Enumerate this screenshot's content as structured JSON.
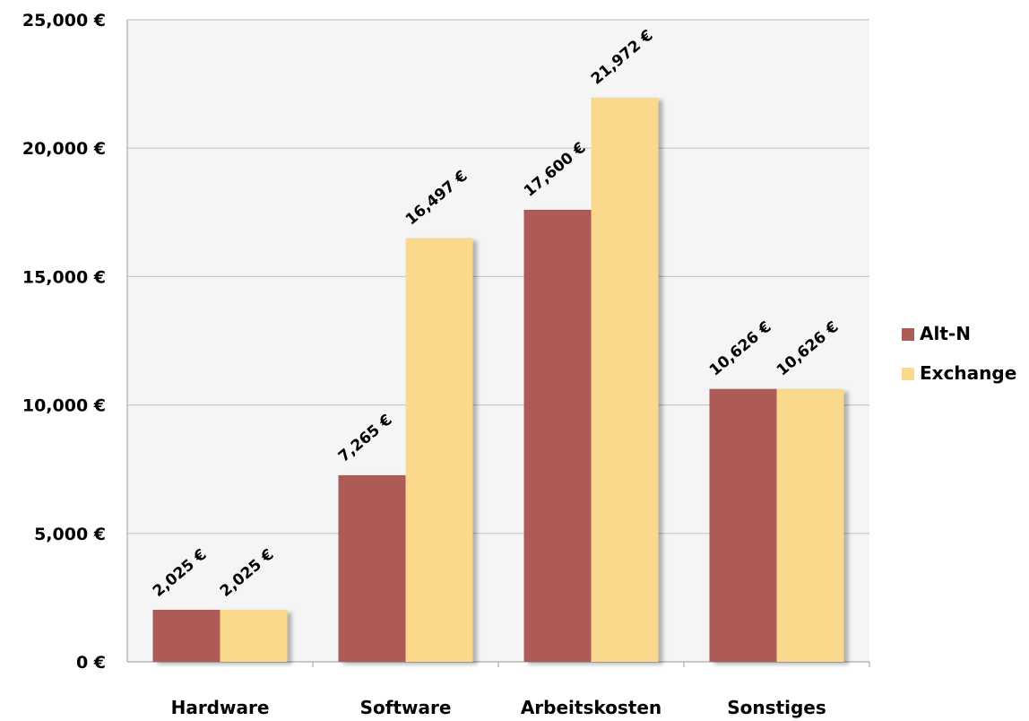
{
  "chart_data": {
    "type": "bar",
    "categories": [
      "Hardware",
      "Software",
      "Arbeitskosten",
      "Sonstiges"
    ],
    "series": [
      {
        "name": "Alt-N",
        "color": "#ae5a56",
        "values": [
          2025,
          7265,
          17600,
          10626
        ]
      },
      {
        "name": "Exchange",
        "color": "#fbd98c",
        "values": [
          2025,
          16497,
          21972,
          10626
        ]
      }
    ],
    "data_labels": [
      [
        "2,025 €",
        "7,265 €",
        "17,600 €",
        "10,626 €"
      ],
      [
        "2,025 €",
        "16,497 €",
        "21,972 €",
        "10,626 €"
      ]
    ],
    "y_ticks": [
      0,
      5000,
      10000,
      15000,
      20000,
      25000
    ],
    "y_tick_labels": [
      "0 €",
      "5,000 €",
      "10,000 €",
      "15,000 €",
      "20,000 €",
      "25,000 €"
    ],
    "ylim": [
      0,
      25000
    ],
    "grid": true,
    "legend_position": "right",
    "plot_background": "#f5f5f5",
    "title": "",
    "xlabel": "",
    "ylabel": ""
  }
}
